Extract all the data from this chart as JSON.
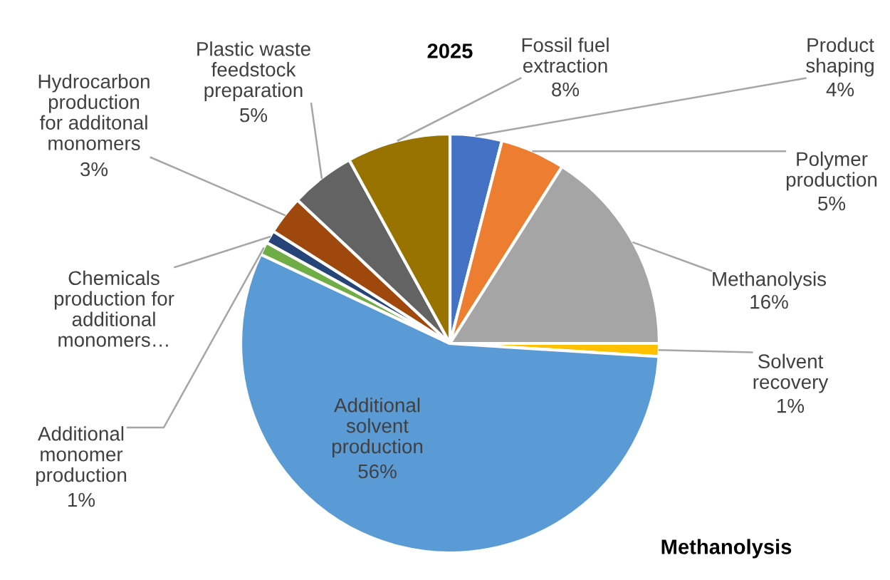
{
  "chart_data": {
    "type": "pie",
    "title": "2025",
    "categories": [
      "Product shaping",
      "Polymer production",
      "Methanolysis",
      "Solvent recovery",
      "Additional solvent production",
      "Additional monomer production",
      "Chemicals production for additional monomers…",
      "Hydrocarbon production for additonal monomers",
      "Plastic waste feedstock preparation",
      "Fossil fuel extraction"
    ],
    "values": [
      4,
      5,
      16,
      1,
      56,
      1,
      1,
      3,
      5,
      8
    ],
    "value_labels": [
      "4%",
      "5%",
      "16%",
      "1%",
      "56%",
      "1%",
      null,
      "3%",
      "5%",
      "8%"
    ],
    "colors": [
      "#4472c4",
      "#ed7d31",
      "#a5a5a5",
      "#ffc000",
      "#5b9bd5",
      "#70ad47",
      "#264478",
      "#9e480e",
      "#636363",
      "#997300"
    ],
    "annotations": [
      "Methanolysis"
    ],
    "legend": false
  }
}
